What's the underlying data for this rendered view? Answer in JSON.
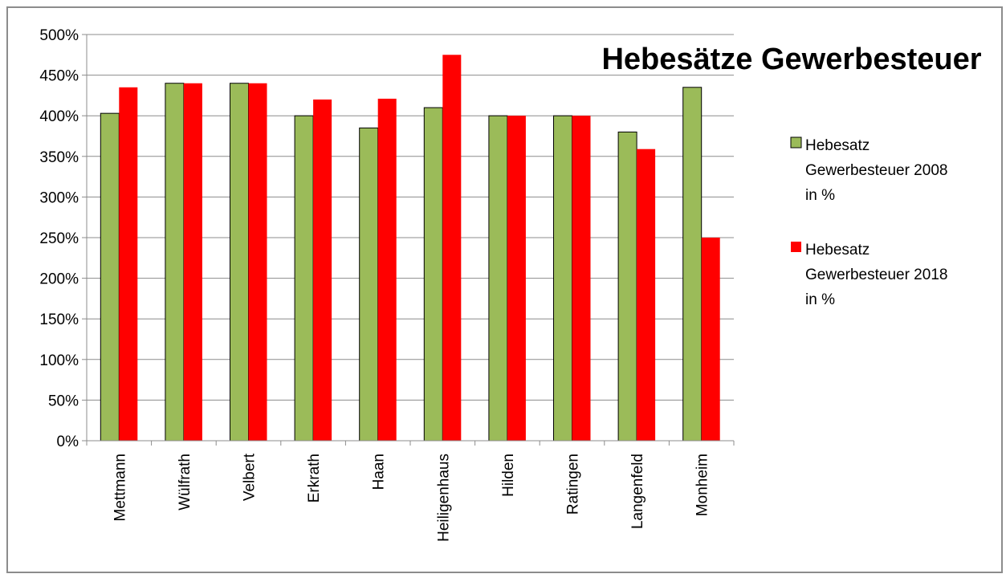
{
  "chart_data": {
    "type": "bar",
    "title": "Hebesätze Gewerbesteuer",
    "xlabel": "",
    "ylabel": "",
    "ylim": [
      0,
      500
    ],
    "y_tick_step": 50,
    "y_tick_suffix": "%",
    "y_ticks": [
      "0%",
      "50%",
      "100%",
      "150%",
      "200%",
      "250%",
      "300%",
      "350%",
      "400%",
      "450%",
      "500%"
    ],
    "grid": "horizontal",
    "legend_position": "right",
    "categories": [
      "Mettmann",
      "Wülfrath",
      "Velbert",
      "Erkrath",
      "Haan",
      "Heiligenhaus",
      "Hilden",
      "Ratingen",
      "Langenfeld",
      "Monheim"
    ],
    "series": [
      {
        "name": "Hebesatz Gewerbesteuer 2008 in %",
        "legend_lines": [
          "Hebesatz",
          "Gewerbesteuer 2008",
          "in %"
        ],
        "color": "#9bbb59",
        "values": [
          403,
          440,
          440,
          400,
          385,
          410,
          400,
          400,
          380,
          435
        ]
      },
      {
        "name": "Hebesatz Gewerbesteuer 2018 in %",
        "legend_lines": [
          "Hebesatz",
          "Gewerbesteuer 2018",
          "in %"
        ],
        "color": "#ff0000",
        "values": [
          435,
          440,
          440,
          420,
          421,
          475,
          400,
          400,
          359,
          250
        ]
      }
    ]
  }
}
